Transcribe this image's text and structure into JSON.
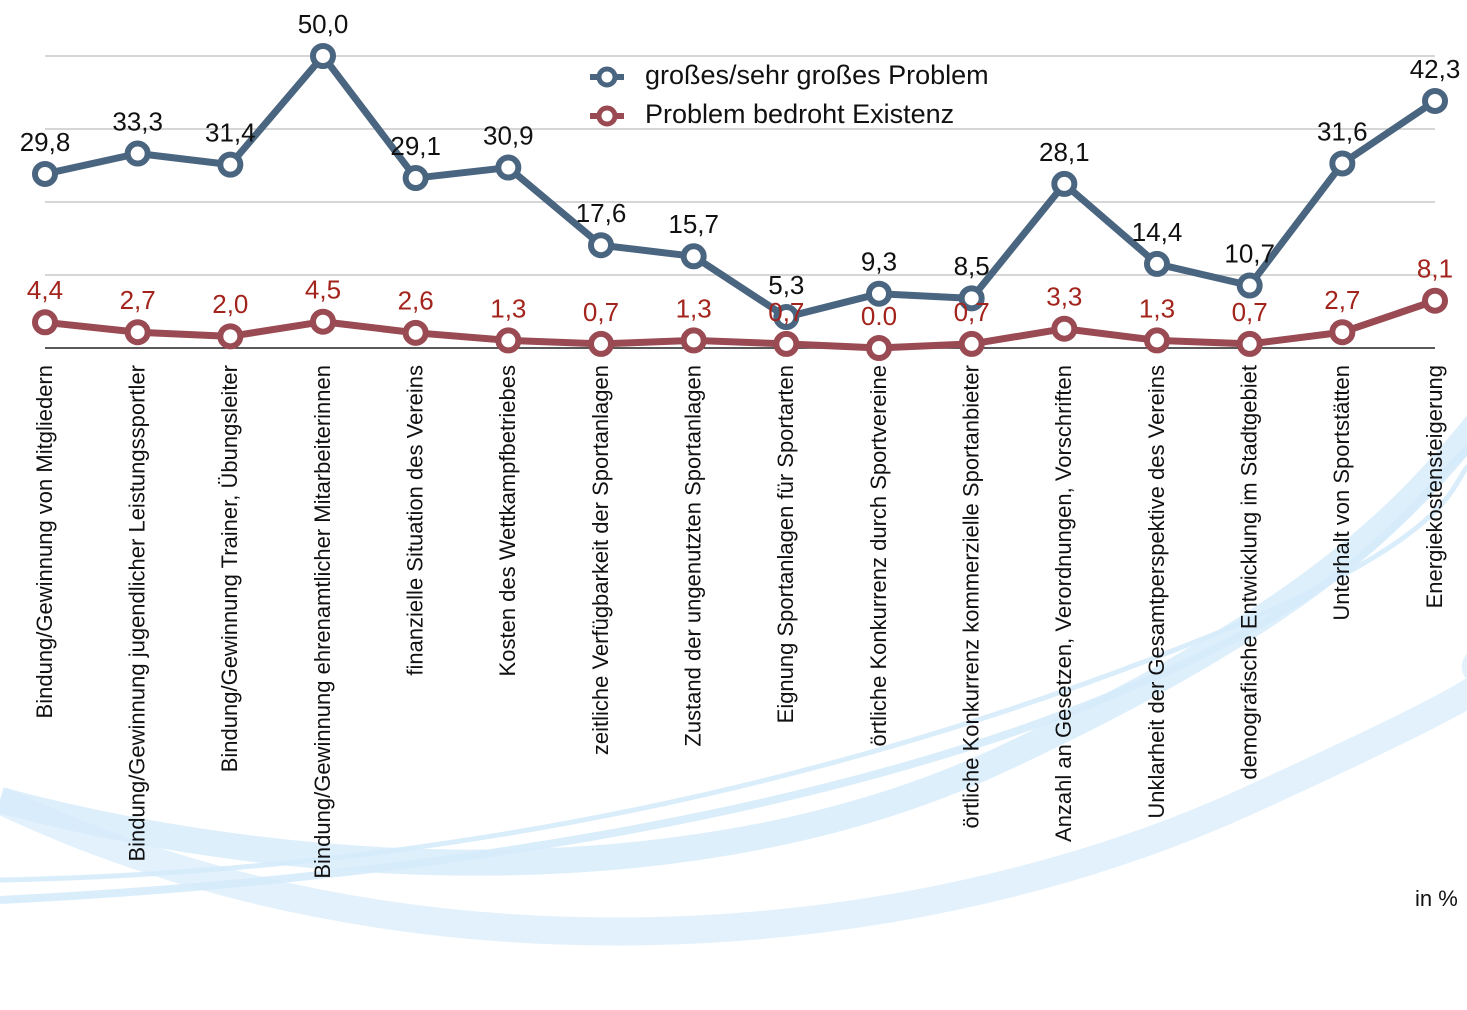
{
  "chart_data": {
    "type": "line",
    "categories": [
      "Bindung/Gewinnung von Mitgliedern",
      "Bindung/Gewinnung jugendlicher Leistungssportler",
      "Bindung/Gewinnung Trainer, Übungsleiter",
      "Bindung/Gewinnung ehrenamtlicher Mitarbeiterinnen",
      "finanzielle Situation des Vereins",
      "Kosten des Wettkampfbetriebes",
      "zeitliche Verfügbarkeit der Sportanlagen",
      "Zustand der ungenutzten Sportanlagen",
      "Eignung Sportanlagen für Sportarten",
      "örtliche Konkurrenz durch Sportvereine",
      "örtliche Konkurrenz kommerzielle Sportanbieter",
      "Anzahl an Gesetzen, Verordnungen, Vorschriften",
      "Unklarheit der Gesamtperspektive des Vereins",
      "demografische Entwicklung im Stadtgebiet",
      "Unterhalt von Sportstätten",
      "Energiekostensteigerung"
    ],
    "series": [
      {
        "name": "großes/sehr großes Problem",
        "color": "#4a6580",
        "label_color": "#111111",
        "values": [
          29.8,
          33.3,
          31.4,
          50.0,
          29.1,
          30.9,
          17.6,
          15.7,
          5.3,
          9.3,
          8.5,
          28.1,
          14.4,
          10.7,
          31.6,
          42.3
        ],
        "value_labels": [
          "29,8",
          "33,3",
          "31,4",
          "50,0",
          "29,1",
          "30,9",
          "17,6",
          "15,7",
          "5,3",
          "9,3",
          "8,5",
          "28,1",
          "14,4",
          "10,7",
          "31,6",
          "42,3"
        ]
      },
      {
        "name": "Problem bedroht Existenz",
        "color": "#9a4a52",
        "label_color": "#a3241c",
        "values": [
          4.4,
          2.7,
          2.0,
          4.5,
          2.6,
          1.3,
          0.7,
          1.3,
          0.7,
          0.0,
          0.7,
          3.3,
          1.3,
          0.7,
          2.7,
          8.1
        ],
        "value_labels": [
          "4,4",
          "2,7",
          "2,0",
          "4,5",
          "2,6",
          "1,3",
          "0,7",
          "1,3",
          "0,7",
          "0.0",
          "0,7",
          "3,3",
          "1,3",
          "0,7",
          "2,7",
          "8,1"
        ]
      }
    ],
    "ylim": [
      0,
      50
    ],
    "yticks": [
      0,
      12.5,
      25,
      37.5,
      50
    ],
    "grid": true,
    "annotation": "in %"
  }
}
